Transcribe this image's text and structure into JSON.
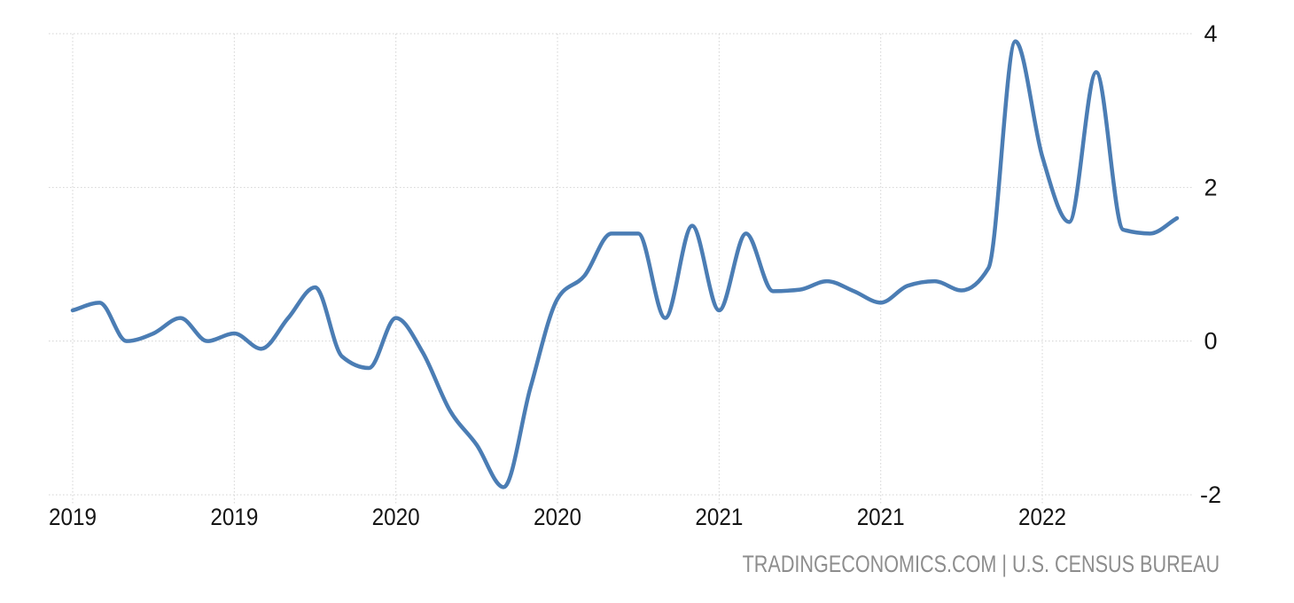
{
  "chart_data": {
    "type": "line",
    "title": "",
    "xlabel": "",
    "ylabel": "",
    "x": [
      "Jan 2019",
      "Feb 2019",
      "Mar 2019",
      "Apr 2019",
      "May 2019",
      "Jun 2019",
      "Jul 2019",
      "Aug 2019",
      "Sep 2019",
      "Oct 2019",
      "Nov 2019",
      "Dec 2019",
      "Jan 2020",
      "Feb 2020",
      "Mar 2020",
      "Apr 2020",
      "May 2020",
      "Jun 2020",
      "Jul 2020",
      "Aug 2020",
      "Sep 2020",
      "Oct 2020",
      "Nov 2020",
      "Dec 2020",
      "Jan 2021",
      "Feb 2021",
      "Mar 2021",
      "Apr 2021",
      "May 2021",
      "Jun 2021",
      "Jul 2021",
      "Aug 2021",
      "Sep 2021",
      "Oct 2021",
      "Nov 2021",
      "Dec 2021",
      "Jan 2022",
      "Feb 2022",
      "Mar 2022",
      "Apr 2022",
      "May 2022",
      "Jun 2022"
    ],
    "values": [
      0.4,
      0.5,
      0.0,
      0.1,
      0.3,
      0.0,
      0.1,
      -0.1,
      0.3,
      0.7,
      -0.2,
      -0.35,
      0.3,
      -0.15,
      -0.9,
      -1.35,
      -1.9,
      -0.6,
      0.55,
      0.85,
      1.4,
      1.4,
      0.3,
      1.5,
      0.4,
      1.4,
      0.65,
      0.67,
      0.78,
      0.65,
      0.5,
      0.72,
      0.78,
      0.66,
      0.95,
      3.9,
      2.4,
      1.55,
      3.5,
      1.45,
      1.4,
      1.6
    ],
    "x_tick_month_indices": [
      0,
      6,
      12,
      18,
      24,
      30,
      36
    ],
    "x_tick_labels": [
      "2019",
      "2019",
      "2020",
      "2020",
      "2021",
      "2021",
      "2022"
    ],
    "y_ticks": [
      4,
      2,
      0,
      -2
    ],
    "y_tick_labels": [
      "4",
      "2",
      "0",
      "-2"
    ],
    "ylim": [
      -2,
      4
    ],
    "grid": "dotted",
    "legend": "none",
    "line_color": "#4B7DB4",
    "grid_color": "#d3d3d3",
    "axis_text_color": "#151515"
  },
  "attribution": {
    "text": "TRADINGECONOMICS.COM | U.S. CENSUS BUREAU",
    "color": "#8d8d8d"
  }
}
